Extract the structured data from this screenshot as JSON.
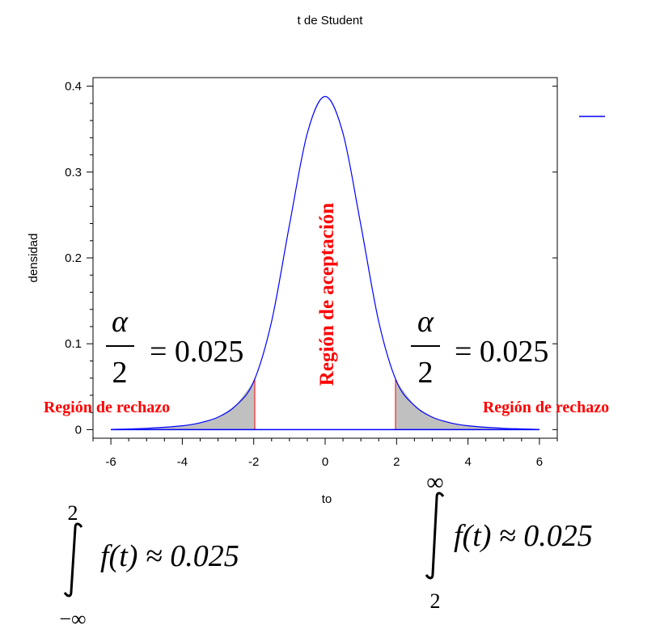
{
  "chart_data": {
    "type": "line",
    "title": "t de Student",
    "xlabel": "to",
    "ylabel": "densidad",
    "xlim": [
      -6.5,
      6.5
    ],
    "ylim": [
      -0.01,
      0.41
    ],
    "x_ticks": [
      -6,
      -4,
      -2,
      0,
      2,
      4,
      6
    ],
    "y_ticks": [
      0,
      0.1,
      0.2,
      0.3,
      0.4
    ],
    "x_tick_labels": [
      "-6",
      "-4",
      "-2",
      "0",
      "2",
      "4",
      "6"
    ],
    "y_tick_labels": [
      "0",
      "0.1",
      "0.2",
      "0.3",
      "0.4"
    ],
    "grid": false,
    "legend": "top-right",
    "colors": {
      "curve": "#0000ff",
      "critical": "#ff0000",
      "shade": "#c0c0c0",
      "annotation": "#ff0000"
    },
    "series": [
      {
        "x": [
          -6,
          -5,
          -4,
          -3.5,
          -3,
          -2.5,
          -2,
          -1.5,
          -1,
          -0.5,
          0,
          0.5,
          1,
          1.5,
          2,
          2.5,
          3,
          3.5,
          4,
          5,
          6
        ],
        "y": [
          0.0003,
          0.0015,
          0.0045,
          0.008,
          0.0145,
          0.028,
          0.056,
          0.126,
          0.238,
          0.345,
          0.388,
          0.345,
          0.238,
          0.126,
          0.056,
          0.028,
          0.0145,
          0.008,
          0.0045,
          0.0015,
          0.0003
        ]
      }
    ],
    "critical_values": [
      -1.97,
      1.97
    ],
    "shaded_tails": [
      [
        -6,
        -1.97
      ],
      [
        1.97,
        6
      ]
    ],
    "annotations": {
      "accept": "Región de aceptación",
      "reject_left": "Región de rechazo",
      "reject_right": "Región de rechazo",
      "alpha_symbol": "α",
      "alpha_denominator": "2",
      "alpha_value_left": "= 0.025",
      "alpha_value_right": "= 0.025",
      "integral_left": {
        "upper": "2",
        "lower": "−∞",
        "body": "f(t) ≈ 0.025"
      },
      "integral_right": {
        "upper": "∞",
        "lower": "2",
        "body": "f(t) ≈ 0.025"
      }
    }
  }
}
